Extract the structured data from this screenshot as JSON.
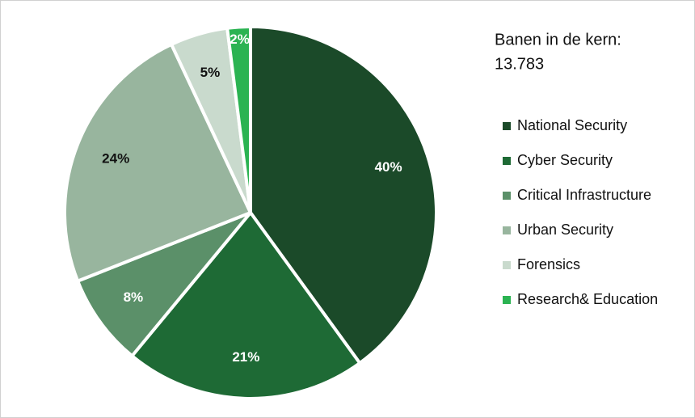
{
  "chart_data": {
    "type": "pie",
    "title": "Banen in de kern:",
    "subtitle": "13.783",
    "categories": [
      "National Security",
      "Cyber Security",
      "Critical Infrastructure",
      "Urban Security",
      "Forensics",
      "Research& Education"
    ],
    "values": [
      40,
      21,
      8,
      24,
      5,
      2
    ],
    "value_labels": [
      "40%",
      "21%",
      "8%",
      "24%",
      "5%",
      "2%"
    ],
    "colors": [
      "#1b4a29",
      "#1e6a35",
      "#5b9069",
      "#98b59e",
      "#c9dacd",
      "#2bb352"
    ],
    "legend": "right"
  }
}
